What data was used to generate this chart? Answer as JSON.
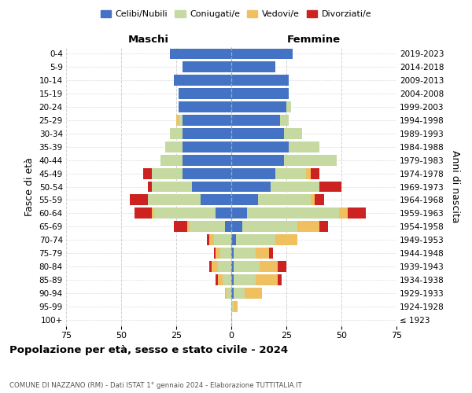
{
  "age_groups": [
    "100+",
    "95-99",
    "90-94",
    "85-89",
    "80-84",
    "75-79",
    "70-74",
    "65-69",
    "60-64",
    "55-59",
    "50-54",
    "45-49",
    "40-44",
    "35-39",
    "30-34",
    "25-29",
    "20-24",
    "15-19",
    "10-14",
    "5-9",
    "0-4"
  ],
  "birth_years": [
    "≤ 1923",
    "1924-1928",
    "1929-1933",
    "1934-1938",
    "1939-1943",
    "1944-1948",
    "1949-1953",
    "1954-1958",
    "1959-1963",
    "1964-1968",
    "1969-1973",
    "1974-1978",
    "1979-1983",
    "1984-1988",
    "1989-1993",
    "1994-1998",
    "1999-2003",
    "2004-2008",
    "2009-2013",
    "2014-2018",
    "2019-2023"
  ],
  "colors": {
    "celibi": "#4472c4",
    "coniugati": "#c5d9a0",
    "vedovi": "#f0c060",
    "divorziati": "#cc2222"
  },
  "maschi": {
    "celibi": [
      0,
      0,
      0,
      0,
      0,
      0,
      0,
      3,
      7,
      14,
      18,
      22,
      22,
      22,
      22,
      22,
      24,
      24,
      26,
      22,
      28
    ],
    "coniugati": [
      0,
      0,
      2,
      4,
      6,
      5,
      8,
      16,
      28,
      24,
      18,
      14,
      10,
      8,
      6,
      2,
      0,
      0,
      0,
      0,
      0
    ],
    "vedovi": [
      0,
      0,
      1,
      2,
      3,
      2,
      2,
      1,
      1,
      0,
      0,
      0,
      0,
      0,
      0,
      1,
      0,
      0,
      0,
      0,
      0
    ],
    "divorziati": [
      0,
      0,
      0,
      1,
      1,
      1,
      1,
      6,
      8,
      8,
      2,
      4,
      0,
      0,
      0,
      0,
      0,
      0,
      0,
      0,
      0
    ]
  },
  "femmine": {
    "celibi": [
      0,
      0,
      1,
      1,
      1,
      1,
      2,
      5,
      7,
      12,
      18,
      20,
      24,
      26,
      24,
      22,
      25,
      26,
      26,
      20,
      28
    ],
    "coniugati": [
      0,
      1,
      5,
      10,
      12,
      10,
      18,
      25,
      42,
      24,
      22,
      14,
      24,
      14,
      8,
      4,
      2,
      0,
      0,
      0,
      0
    ],
    "vedovi": [
      0,
      2,
      8,
      10,
      8,
      6,
      10,
      10,
      4,
      2,
      0,
      2,
      0,
      0,
      0,
      0,
      0,
      0,
      0,
      0,
      0
    ],
    "divorziati": [
      0,
      0,
      0,
      2,
      4,
      2,
      0,
      4,
      8,
      4,
      10,
      4,
      0,
      0,
      0,
      0,
      0,
      0,
      0,
      0,
      0
    ]
  },
  "xlim": 75,
  "title": "Popolazione per età, sesso e stato civile - 2024",
  "subtitle": "COMUNE DI NAZZANO (RM) - Dati ISTAT 1° gennaio 2024 - Elaborazione TUTTITALIA.IT",
  "ylabel_left": "Fasce di età",
  "ylabel_right": "Anni di nascita",
  "xlabel_maschi": "Maschi",
  "xlabel_femmine": "Femmine",
  "legend_labels": [
    "Celibi/Nubili",
    "Coniugati/e",
    "Vedovi/e",
    "Divorziati/e"
  ],
  "bg_color": "#ffffff",
  "grid_color": "#cccccc"
}
